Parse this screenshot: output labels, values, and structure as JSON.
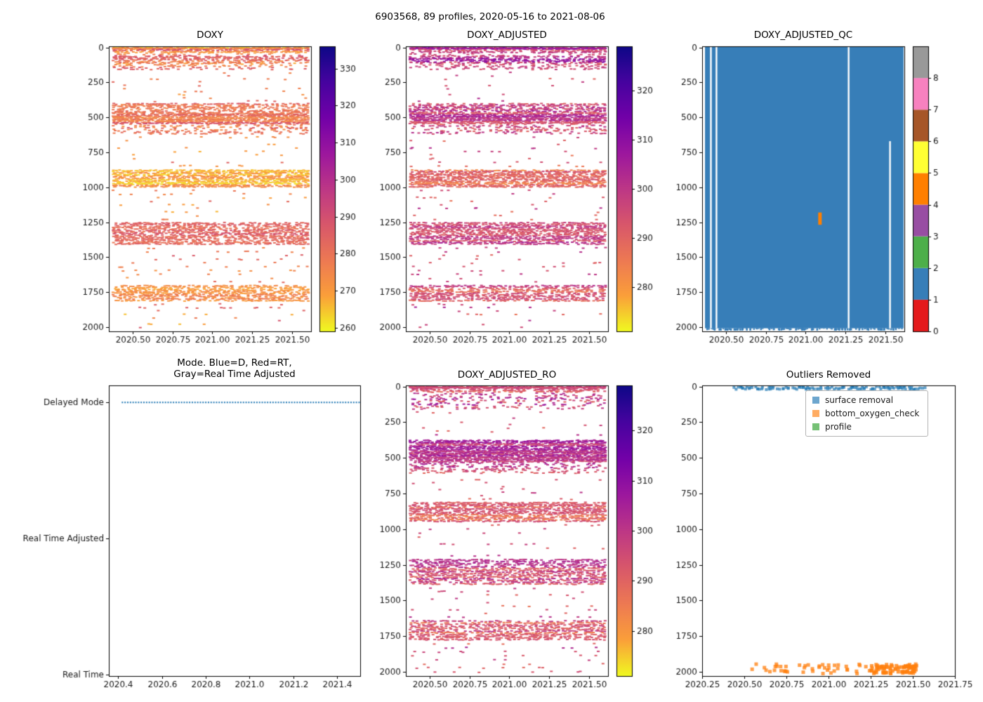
{
  "figure": {
    "title": "6903568, 89 profiles, 2020-05-16 to 2021-08-06",
    "profiles": 89
  },
  "colors": {
    "background": "#ffffff",
    "axis": "#000000",
    "tick_label": "#1a1a1a",
    "plasma_low_to_high": [
      "#f0f921",
      "#fb9f3a",
      "#ed7953",
      "#d8576b",
      "#bd3786",
      "#9c179e",
      "#7201a8",
      "#46039f",
      "#0d0887"
    ],
    "set1": [
      "#e41a1c",
      "#377eb8",
      "#4daf4a",
      "#984ea3",
      "#ff7f00",
      "#ffff33",
      "#a65628",
      "#f781bf",
      "#999999"
    ],
    "mode_dot": "#1f77b4"
  },
  "chart_data": [
    {
      "id": "doxy",
      "type": "scatter",
      "title": "DOXY",
      "x_range": [
        2020.35,
        2021.62
      ],
      "xticks": [
        2020.5,
        2020.75,
        2021.0,
        2021.25,
        2021.5
      ],
      "xtick_labels": [
        "2020.50",
        "2020.75",
        "2021.00",
        "2021.25",
        "2021.50"
      ],
      "y_range": [
        -8,
        2030
      ],
      "yticks": [
        0,
        250,
        500,
        750,
        1000,
        1250,
        1500,
        1750,
        2000
      ],
      "ytick_labels": [
        "0",
        "250",
        "500",
        "750",
        "1000",
        "1250",
        "1500",
        "1750",
        "2000"
      ],
      "x_data_range": [
        2020.38,
        2021.6
      ],
      "colorbar": {
        "min": 259,
        "max": 336,
        "ticks": [
          260,
          270,
          280,
          290,
          300,
          310,
          320,
          330
        ],
        "tick_labels": [
          "260",
          "270",
          "280",
          "290",
          "300",
          "310",
          "320",
          "330"
        ]
      },
      "bands": [
        {
          "depth": [
            0,
            12
          ],
          "levels": 3,
          "density": 0.9,
          "value": [
            263,
            298
          ]
        },
        {
          "depth": [
            14,
            40
          ],
          "levels": 4,
          "density": 0.45,
          "value": [
            266,
            292
          ]
        },
        {
          "depth": [
            45,
            160
          ],
          "levels": 12,
          "density": 0.22,
          "value": [
            268,
            290
          ]
        },
        {
          "depth": [
            60,
            115
          ],
          "levels": 6,
          "density": 0.35,
          "value": [
            272,
            288
          ]
        },
        {
          "depth": [
            170,
            395
          ],
          "levels": 10,
          "density": 0.025,
          "value": [
            270,
            286
          ]
        },
        {
          "depth": [
            400,
            470
          ],
          "levels": 8,
          "density": 0.5,
          "value": [
            272,
            290
          ]
        },
        {
          "depth": [
            470,
            545
          ],
          "levels": 9,
          "density": 0.8,
          "value": [
            272,
            289
          ]
        },
        {
          "depth": [
            545,
            620
          ],
          "levels": 8,
          "density": 0.25,
          "value": [
            270,
            286
          ]
        },
        {
          "depth": [
            630,
            860
          ],
          "levels": 9,
          "density": 0.03,
          "value": [
            268,
            284
          ]
        },
        {
          "depth": [
            875,
            1000
          ],
          "levels": 13,
          "density": 0.7,
          "value": [
            263,
            276
          ]
        },
        {
          "depth": [
            1010,
            1240
          ],
          "levels": 9,
          "density": 0.04,
          "value": [
            268,
            284
          ]
        },
        {
          "depth": [
            1250,
            1410
          ],
          "levels": 15,
          "density": 0.65,
          "value": [
            276,
            292
          ]
        },
        {
          "depth": [
            1420,
            1690
          ],
          "levels": 10,
          "density": 0.05,
          "value": [
            272,
            288
          ]
        },
        {
          "depth": [
            1700,
            1815
          ],
          "levels": 11,
          "density": 0.6,
          "value": [
            267,
            282
          ]
        },
        {
          "depth": [
            1825,
            2015
          ],
          "levels": 8,
          "density": 0.05,
          "value": [
            266,
            292
          ]
        }
      ]
    },
    {
      "id": "adjusted",
      "type": "scatter",
      "title": "DOXY_ADJUSTED",
      "x_range": [
        2020.35,
        2021.62
      ],
      "xticks": [
        2020.5,
        2020.75,
        2021.0,
        2021.25,
        2021.5
      ],
      "xtick_labels": [
        "2020.50",
        "2020.75",
        "2021.00",
        "2021.25",
        "2021.50"
      ],
      "y_range": [
        -8,
        2030
      ],
      "yticks": [
        0,
        250,
        500,
        750,
        1000,
        1250,
        1500,
        1750,
        2000
      ],
      "ytick_labels": [
        "0",
        "250",
        "500",
        "750",
        "1000",
        "1250",
        "1500",
        "1750",
        "2000"
      ],
      "x_data_range": [
        2020.38,
        2021.6
      ],
      "colorbar": {
        "min": 271,
        "max": 329,
        "ticks": [
          280,
          290,
          300,
          310,
          320
        ],
        "tick_labels": [
          "280",
          "290",
          "300",
          "310",
          "320"
        ]
      },
      "bands": [
        {
          "depth": [
            0,
            12
          ],
          "levels": 3,
          "density": 0.9,
          "value": [
            280,
            312
          ]
        },
        {
          "depth": [
            14,
            40
          ],
          "levels": 4,
          "density": 0.45,
          "value": [
            286,
            306
          ]
        },
        {
          "depth": [
            45,
            160
          ],
          "levels": 12,
          "density": 0.25,
          "value": [
            290,
            308
          ]
        },
        {
          "depth": [
            60,
            115
          ],
          "levels": 6,
          "density": 0.4,
          "value": [
            294,
            312
          ]
        },
        {
          "depth": [
            170,
            395
          ],
          "levels": 10,
          "density": 0.025,
          "value": [
            290,
            304
          ]
        },
        {
          "depth": [
            400,
            470
          ],
          "levels": 8,
          "density": 0.5,
          "value": [
            292,
            306
          ]
        },
        {
          "depth": [
            470,
            545
          ],
          "levels": 9,
          "density": 0.8,
          "value": [
            292,
            305
          ]
        },
        {
          "depth": [
            545,
            620
          ],
          "levels": 8,
          "density": 0.25,
          "value": [
            290,
            303
          ]
        },
        {
          "depth": [
            630,
            860
          ],
          "levels": 9,
          "density": 0.03,
          "value": [
            288,
            301
          ]
        },
        {
          "depth": [
            875,
            1000
          ],
          "levels": 13,
          "density": 0.7,
          "value": [
            283,
            295
          ]
        },
        {
          "depth": [
            1010,
            1240
          ],
          "levels": 9,
          "density": 0.04,
          "value": [
            288,
            301
          ]
        },
        {
          "depth": [
            1250,
            1410
          ],
          "levels": 15,
          "density": 0.65,
          "value": [
            291,
            304
          ]
        },
        {
          "depth": [
            1420,
            1690
          ],
          "levels": 10,
          "density": 0.05,
          "value": [
            289,
            302
          ]
        },
        {
          "depth": [
            1700,
            1815
          ],
          "levels": 11,
          "density": 0.6,
          "value": [
            287,
            300
          ]
        },
        {
          "depth": [
            1825,
            2015
          ],
          "levels": 8,
          "density": 0.05,
          "value": [
            286,
            304
          ]
        }
      ]
    },
    {
      "id": "qc",
      "type": "qc",
      "title": "DOXY_ADJUSTED_QC",
      "x_range": [
        2020.35,
        2021.62
      ],
      "xticks": [
        2020.5,
        2020.75,
        2021.0,
        2021.25,
        2021.5
      ],
      "xtick_labels": [
        "2020.50",
        "2020.75",
        "2021.00",
        "2021.25",
        "2021.50"
      ],
      "y_range": [
        -8,
        2030
      ],
      "yticks": [
        0,
        250,
        500,
        750,
        1000,
        1250,
        1500,
        1750,
        2000
      ],
      "ytick_labels": [
        "0",
        "250",
        "500",
        "750",
        "1000",
        "1250",
        "1500",
        "1750",
        "2000"
      ],
      "block": {
        "x": [
          2020.368,
          2021.615
        ],
        "depth": [
          -4,
          2008
        ],
        "qc_value": 1
      },
      "white_gaps": [
        {
          "x": 2020.405,
          "depth": [
            -4,
            2008
          ]
        },
        {
          "x": 2020.44,
          "depth": [
            -4,
            2008
          ]
        },
        {
          "x": 2021.27,
          "depth": [
            -4,
            2008
          ]
        },
        {
          "x": 2021.53,
          "depth": [
            670,
            2008
          ]
        }
      ],
      "orange_mark": {
        "x": 2021.09,
        "depth": [
          1180,
          1268
        ],
        "qc_value": 4
      },
      "colorbar": {
        "ticks": [
          0,
          1,
          2,
          3,
          4,
          5,
          6,
          7,
          8
        ],
        "tick_labels": [
          "0",
          "1",
          "2",
          "3",
          "4",
          "5",
          "6",
          "7",
          "8"
        ],
        "colors": [
          "#e41a1c",
          "#377eb8",
          "#4daf4a",
          "#984ea3",
          "#ff7f00",
          "#ffff33",
          "#a65628",
          "#f781bf",
          "#999999"
        ]
      }
    },
    {
      "id": "mode",
      "type": "mode",
      "title": "Mode. Blue=D, Red=RT,\nGray=Real Time Adjusted",
      "x_range": [
        2020.358,
        2021.505
      ],
      "xticks": [
        2020.4,
        2020.6,
        2020.8,
        2021.0,
        2021.2,
        2021.4
      ],
      "xtick_labels": [
        "2020.4",
        "2020.6",
        "2020.8",
        "2021.0",
        "2021.2",
        "2021.4"
      ],
      "y_range": [
        -0.125,
        2.01
      ],
      "categories": [
        {
          "label": "Delayed Mode",
          "value": 0
        },
        {
          "label": "Real Time Adjusted",
          "value": 1
        },
        {
          "label": "Real Time",
          "value": 2
        }
      ],
      "series": {
        "category_value": 0,
        "x_start": 2020.42,
        "x_end": 2021.5,
        "points": 89,
        "color": "#1f77b4",
        "style": "dotted"
      }
    },
    {
      "id": "ro",
      "type": "scatter",
      "title": "DOXY_ADJUSTED_RO",
      "x_range": [
        2020.35,
        2021.62
      ],
      "xticks": [
        2020.5,
        2020.75,
        2021.0,
        2021.25,
        2021.5
      ],
      "xtick_labels": [
        "2020.50",
        "2020.75",
        "2021.00",
        "2021.25",
        "2021.50"
      ],
      "y_range": [
        -8,
        2030
      ],
      "yticks": [
        0,
        250,
        500,
        750,
        1000,
        1250,
        1500,
        1750,
        2000
      ],
      "ytick_labels": [
        "0",
        "250",
        "500",
        "750",
        "1000",
        "1250",
        "1500",
        "1750",
        "2000"
      ],
      "x_data_range": [
        2020.38,
        2021.6
      ],
      "colorbar": {
        "min": 271,
        "max": 329,
        "ticks": [
          280,
          290,
          300,
          310,
          320
        ],
        "tick_labels": [
          "280",
          "290",
          "300",
          "310",
          "320"
        ]
      },
      "bands": [
        {
          "depth": [
            0,
            12
          ],
          "levels": 3,
          "density": 0.9,
          "value": [
            280,
            312
          ]
        },
        {
          "depth": [
            14,
            40
          ],
          "levels": 4,
          "density": 0.45,
          "value": [
            284,
            306
          ]
        },
        {
          "depth": [
            45,
            160
          ],
          "levels": 12,
          "density": 0.2,
          "value": [
            288,
            306
          ]
        },
        {
          "depth": [
            170,
            370
          ],
          "levels": 9,
          "density": 0.02,
          "value": [
            288,
            302
          ]
        },
        {
          "depth": [
            375,
            445
          ],
          "levels": 8,
          "density": 0.75,
          "value": [
            295,
            308
          ]
        },
        {
          "depth": [
            445,
            530
          ],
          "levels": 10,
          "density": 0.85,
          "value": [
            294,
            307
          ]
        },
        {
          "depth": [
            530,
            610
          ],
          "levels": 8,
          "density": 0.3,
          "value": [
            291,
            304
          ]
        },
        {
          "depth": [
            620,
            800
          ],
          "levels": 8,
          "density": 0.03,
          "value": [
            288,
            301
          ]
        },
        {
          "depth": [
            810,
            950
          ],
          "levels": 13,
          "density": 0.7,
          "value": [
            284,
            296
          ]
        },
        {
          "depth": [
            960,
            1200
          ],
          "levels": 9,
          "density": 0.04,
          "value": [
            288,
            301
          ]
        },
        {
          "depth": [
            1210,
            1390
          ],
          "levels": 15,
          "density": 0.65,
          "value": [
            290,
            303
          ]
        },
        {
          "depth": [
            1400,
            1630
          ],
          "levels": 9,
          "density": 0.05,
          "value": [
            288,
            301
          ]
        },
        {
          "depth": [
            1640,
            1780
          ],
          "levels": 12,
          "density": 0.6,
          "value": [
            286,
            299
          ]
        },
        {
          "depth": [
            1790,
            2015
          ],
          "levels": 8,
          "density": 0.05,
          "value": [
            285,
            303
          ]
        }
      ]
    },
    {
      "id": "outliers",
      "type": "outliers",
      "title": "Outliers Removed",
      "x_range": [
        2020.25,
        2021.75
      ],
      "xticks": [
        2020.25,
        2020.5,
        2020.75,
        2021.0,
        2021.25,
        2021.5,
        2021.75
      ],
      "xtick_labels": [
        "2020.25",
        "2020.50",
        "2020.75",
        "2021.00",
        "2021.25",
        "2021.50",
        "2021.75"
      ],
      "y_range": [
        -8,
        2030
      ],
      "yticks": [
        0,
        250,
        500,
        750,
        1000,
        1250,
        1500,
        1750,
        2000
      ],
      "ytick_labels": [
        "0",
        "250",
        "500",
        "750",
        "1000",
        "1250",
        "1500",
        "1750",
        "2000"
      ],
      "legend": [
        {
          "label": "surface removal",
          "color": "rgba(31,119,180,0.65)"
        },
        {
          "label": "bottom_oxygen_check",
          "color": "rgba(255,127,14,0.65)"
        },
        {
          "label": "profile",
          "color": "rgba(44,160,44,0.65)"
        }
      ],
      "groups": [
        {
          "name": "surface removal",
          "color": "rgba(31,119,180,0.7)",
          "x": [
            2020.44,
            2021.57
          ],
          "depth": [
            0,
            22
          ],
          "density": 0.85,
          "marker": 4
        },
        {
          "name": "bottom_oxygen_check",
          "color": "rgba(255,127,14,0.75)",
          "x": [
            2020.55,
            2021.52
          ],
          "depth": [
            1945,
            2015
          ],
          "density": 0.5,
          "marker": 5
        },
        {
          "name": "bottom_oxygen_check_dense",
          "color": "rgba(255,127,14,0.8)",
          "x": [
            2021.25,
            2021.52
          ],
          "depth": [
            1950,
            2015
          ],
          "density": 0.6,
          "marker": 5
        }
      ]
    }
  ]
}
